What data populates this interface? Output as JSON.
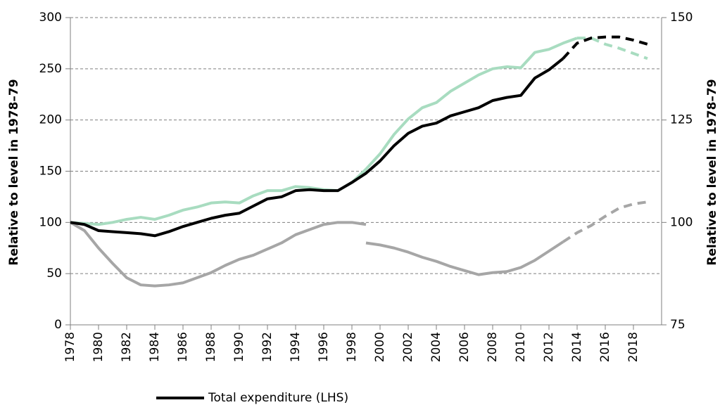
{
  "chart_data": {
    "type": "line",
    "ylabel": "Relative to level in 1978–79",
    "y2label": "Relative to level in 1978–79",
    "x": [
      1978,
      1979,
      1980,
      1981,
      1982,
      1983,
      1984,
      1985,
      1986,
      1987,
      1988,
      1989,
      1990,
      1991,
      1992,
      1993,
      1994,
      1995,
      1996,
      1997,
      1998,
      1999,
      2000,
      2001,
      2002,
      2003,
      2004,
      2005,
      2006,
      2007,
      2008,
      2009,
      2010,
      2011,
      2012,
      2013,
      2014,
      2015,
      2016,
      2017,
      2018,
      2019
    ],
    "xlim": [
      1978,
      2020
    ],
    "xticks": [
      1978,
      1980,
      1982,
      1984,
      1986,
      1988,
      1990,
      1992,
      1994,
      1996,
      1998,
      2000,
      2002,
      2004,
      2006,
      2008,
      2010,
      2012,
      2014,
      2016,
      2018
    ],
    "ylim": [
      0,
      300
    ],
    "yticks": [
      0,
      50,
      100,
      150,
      200,
      250,
      300
    ],
    "y2lim": [
      75,
      150
    ],
    "y2ticks": [
      75,
      100,
      125,
      150
    ],
    "grid": true,
    "series": [
      {
        "color": "#a6a6a6",
        "axis": "y2",
        "dashed": false,
        "values": [
          100,
          98,
          93.75,
          90,
          86.5,
          84.75,
          84.5,
          84.75,
          85.25,
          86.5,
          87.75,
          89.5,
          91,
          92,
          93.5,
          95,
          97,
          98.25,
          99.5,
          100,
          100,
          99.5,
          null,
          null,
          null,
          null,
          null,
          null,
          null,
          null,
          null,
          null,
          null,
          null,
          null,
          null,
          null,
          null,
          null,
          null,
          null,
          null
        ]
      },
      {
        "color": "#a6a6a6",
        "axis": "y2",
        "dashed": false,
        "values": [
          null,
          null,
          null,
          null,
          null,
          null,
          null,
          null,
          null,
          null,
          null,
          null,
          null,
          null,
          null,
          null,
          null,
          null,
          null,
          null,
          null,
          95,
          94.5,
          93.75,
          92.75,
          91.5,
          90.5,
          89.25,
          88.25,
          87.25,
          87.75,
          88,
          89,
          90.75,
          93,
          95.25,
          null,
          null,
          null,
          null,
          null,
          null
        ]
      },
      {
        "color": "#a6a6a6",
        "axis": "y2",
        "dashed": true,
        "values": [
          null,
          null,
          null,
          null,
          null,
          null,
          null,
          null,
          null,
          null,
          null,
          null,
          null,
          null,
          null,
          null,
          null,
          null,
          null,
          null,
          null,
          null,
          null,
          null,
          null,
          null,
          null,
          null,
          null,
          null,
          null,
          null,
          null,
          null,
          null,
          95.25,
          97.5,
          99.25,
          101.5,
          103.5,
          104.5,
          105
        ]
      },
      {
        "color": "#a8dcc0",
        "dashed": false,
        "values": [
          100,
          99,
          98,
          100,
          103,
          105,
          103,
          107,
          112,
          115,
          119,
          120,
          119,
          126,
          131,
          131,
          135,
          134,
          132,
          131,
          139,
          152,
          167,
          186,
          201,
          212,
          217,
          228,
          236,
          244,
          250,
          252,
          251,
          266,
          269,
          275,
          280,
          null,
          null,
          null,
          null,
          null
        ]
      },
      {
        "color": "#a8dcc0",
        "dashed": true,
        "values": [
          null,
          null,
          null,
          null,
          null,
          null,
          null,
          null,
          null,
          null,
          null,
          null,
          null,
          null,
          null,
          null,
          null,
          null,
          null,
          null,
          null,
          null,
          null,
          null,
          null,
          null,
          null,
          null,
          null,
          null,
          null,
          null,
          null,
          null,
          null,
          null,
          280,
          280,
          274,
          270,
          265,
          260
        ]
      },
      {
        "name": "Total expenditure (LHS)",
        "color": "#000000",
        "dashed": false,
        "values": [
          100,
          98,
          92,
          91,
          90,
          89,
          87,
          91,
          96,
          100,
          104,
          107,
          109,
          116,
          123,
          125,
          131,
          132,
          131,
          131,
          139,
          148,
          160,
          175,
          187,
          194,
          197,
          204,
          208,
          212,
          219,
          222,
          224,
          241,
          249,
          260,
          null,
          null,
          null,
          null,
          null,
          null
        ]
      },
      {
        "color": "#000000",
        "dashed": true,
        "values": [
          null,
          null,
          null,
          null,
          null,
          null,
          null,
          null,
          null,
          null,
          null,
          null,
          null,
          null,
          null,
          null,
          null,
          null,
          null,
          null,
          null,
          null,
          null,
          null,
          null,
          null,
          null,
          null,
          null,
          null,
          null,
          null,
          null,
          null,
          null,
          260,
          275,
          280,
          281,
          281,
          278,
          274
        ]
      }
    ]
  }
}
